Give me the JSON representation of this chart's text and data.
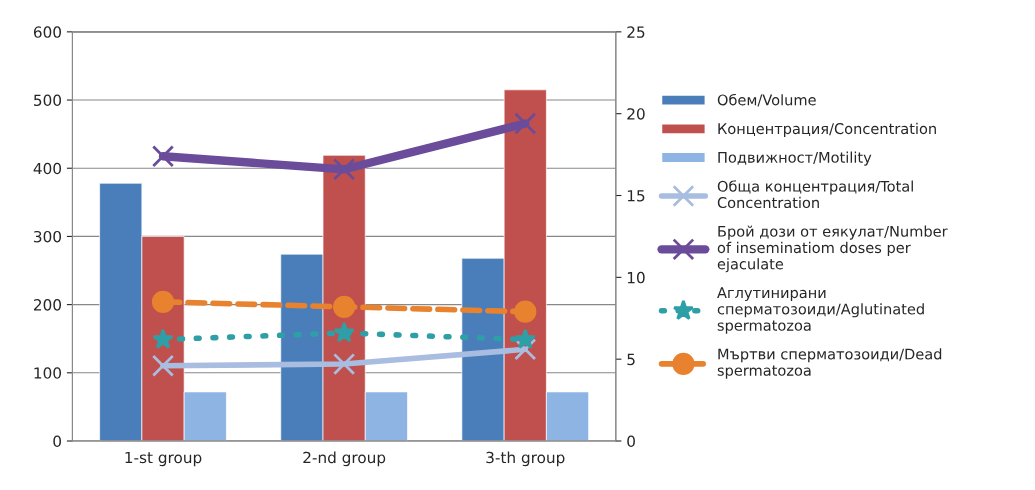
{
  "chart_data": {
    "type": "bar",
    "categories": [
      "1-st group",
      "2-nd group",
      "3-th group"
    ],
    "series": [
      {
        "name": "Обем/Volume",
        "color": "#4a7ebb",
        "values": [
          378,
          274,
          268
        ]
      },
      {
        "name": "Концентрация/Concentration",
        "color": "#c0504d",
        "values": [
          300,
          419,
          515
        ]
      },
      {
        "name": "Подвижност/Motility",
        "color": "#8db4e2",
        "values": [
          72,
          72,
          72
        ]
      },
      {
        "name": "Обща концентрация/Total\nConcentration",
        "type": "line",
        "axis": "y2",
        "color": "#a9bde0",
        "marker": "cross",
        "line_style": "solid",
        "values": [
          4.6,
          4.7,
          5.6
        ]
      },
      {
        "name": "Брой дози от еякулат/Number\nof inseminatiom doses per\nejaculate",
        "type": "line",
        "axis": "y2",
        "color": "#6b4c9a",
        "marker": "cross",
        "line_style": "solid",
        "values": [
          17.4,
          16.6,
          19.4
        ]
      },
      {
        "name": "Аглутинирани\nсперматозоиди/Aglutinated\nspermatozoa",
        "type": "line",
        "axis": "y2",
        "color": "#2e9fa6",
        "marker": "star",
        "line_style": "dotted",
        "values": [
          6.2,
          6.6,
          6.2
        ]
      },
      {
        "name": "Мъртви сперматозоиди/Dead\nspermatozoa",
        "type": "line",
        "axis": "y2",
        "color": "#e8822e",
        "marker": "circle",
        "line_style": "dashed",
        "values": [
          8.5,
          8.2,
          7.9
        ]
      }
    ],
    "ylim": [
      0,
      600
    ],
    "yticks": [
      0,
      100,
      200,
      300,
      400,
      500,
      600
    ],
    "y2lim": [
      0,
      25
    ],
    "y2ticks": [
      0,
      5,
      10,
      15,
      20,
      25
    ],
    "grid": "y",
    "legend": "right"
  }
}
